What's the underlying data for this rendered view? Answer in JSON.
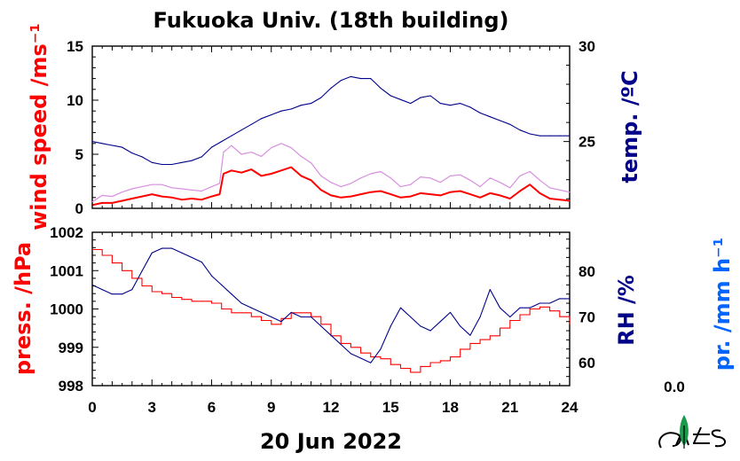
{
  "title": "Fukuoka Univ. (18th building)",
  "date_label": "20 Jun 2022",
  "precip_value": "0.0",
  "colors": {
    "red": "#ff0000",
    "navy": "#00008b",
    "blue": "#0066ff",
    "pink": "#d88ee0",
    "logo_green": "#1a9a4a"
  },
  "chart_data": [
    {
      "type": "line",
      "panel": "top",
      "xlabel": "",
      "x_range": [
        0,
        24
      ],
      "x_ticks": [
        "0",
        "3",
        "6",
        "9",
        "12",
        "15",
        "18",
        "21",
        "24"
      ],
      "left_axis": {
        "label": "wind speed /ms⁻¹",
        "ylim": [
          0,
          15
        ],
        "ticks": [
          "0",
          "5",
          "10",
          "15"
        ],
        "color": "#ff0000"
      },
      "right_axis": {
        "label": "temp. /ºC",
        "ylim": [
          21.5,
          30
        ],
        "ticks": [
          "25",
          "30"
        ],
        "color": "#00008b"
      },
      "series": [
        {
          "axis": "left",
          "color": "#ff0000",
          "style": "mean",
          "x": [
            0,
            0.5,
            1,
            1.5,
            2,
            2.5,
            3,
            3.5,
            4,
            4.5,
            5,
            5.5,
            6,
            6.4,
            6.6,
            7,
            7.5,
            8,
            8.5,
            9,
            9.5,
            10,
            10.5,
            11,
            11.5,
            12,
            12.5,
            13,
            13.5,
            14,
            14.5,
            15,
            15.5,
            16,
            16.5,
            17,
            17.5,
            18,
            18.5,
            19,
            19.5,
            20,
            20.5,
            21,
            21.5,
            22,
            22.5,
            23,
            23.5,
            24
          ],
          "values": [
            0.3,
            0.5,
            0.5,
            0.7,
            0.9,
            1.1,
            1.3,
            1.1,
            1.0,
            0.8,
            0.9,
            0.8,
            1.1,
            1.3,
            3.2,
            3.5,
            3.3,
            3.6,
            3.0,
            3.2,
            3.5,
            3.8,
            3.0,
            2.6,
            1.7,
            1.2,
            1.0,
            1.1,
            1.3,
            1.5,
            1.6,
            1.3,
            1.0,
            1.1,
            1.4,
            1.3,
            1.2,
            1.5,
            1.6,
            1.3,
            1.0,
            1.4,
            1.2,
            0.9,
            1.6,
            2.2,
            1.4,
            0.9,
            0.8,
            0.7
          ]
        },
        {
          "axis": "left",
          "color": "#d88ee0",
          "style": "gust-band",
          "x": [
            0,
            0.5,
            1,
            1.5,
            2,
            2.5,
            3,
            3.5,
            4,
            4.5,
            5,
            5.5,
            6,
            6.4,
            6.6,
            7,
            7.5,
            8,
            8.5,
            9,
            9.5,
            10,
            10.5,
            11,
            11.5,
            12,
            12.5,
            13,
            13.5,
            14,
            14.5,
            15,
            15.5,
            16,
            16.5,
            17,
            17.5,
            18,
            18.5,
            19,
            19.5,
            20,
            20.5,
            21,
            21.5,
            22,
            22.5,
            23,
            23.5,
            24
          ],
          "values": [
            0.6,
            1.2,
            1.1,
            1.5,
            1.8,
            2.0,
            2.2,
            2.2,
            1.9,
            1.8,
            1.7,
            1.6,
            2.0,
            2.3,
            5.2,
            5.8,
            5.0,
            5.2,
            4.8,
            5.6,
            6.0,
            5.6,
            4.8,
            4.2,
            3.0,
            2.4,
            2.0,
            2.3,
            2.8,
            3.2,
            3.4,
            2.8,
            2.0,
            2.2,
            2.9,
            2.8,
            2.4,
            3.0,
            3.1,
            2.6,
            2.0,
            2.8,
            2.4,
            1.9,
            3.0,
            3.4,
            2.6,
            1.9,
            1.7,
            1.5
          ]
        },
        {
          "axis": "right",
          "color": "#00008b",
          "style": "line",
          "x": [
            0,
            0.5,
            1,
            1.5,
            2,
            2.5,
            3,
            3.5,
            4,
            4.5,
            5,
            5.5,
            6,
            6.5,
            7,
            7.5,
            8,
            8.5,
            9,
            9.5,
            10,
            10.5,
            11,
            11.5,
            12,
            12.5,
            13,
            13.5,
            14,
            14.5,
            15,
            15.5,
            16,
            16.5,
            17,
            17.5,
            18,
            18.5,
            19,
            19.5,
            20,
            20.5,
            21,
            21.5,
            22,
            22.5,
            23,
            23.5,
            24
          ],
          "values": [
            25.0,
            24.9,
            24.8,
            24.7,
            24.4,
            24.2,
            23.9,
            23.8,
            23.8,
            23.9,
            24.0,
            24.2,
            24.7,
            25.0,
            25.3,
            25.6,
            25.9,
            26.2,
            26.4,
            26.6,
            26.7,
            26.9,
            27.0,
            27.3,
            27.8,
            28.2,
            28.4,
            28.3,
            28.3,
            27.8,
            27.4,
            27.2,
            27.0,
            27.3,
            27.4,
            27.0,
            26.9,
            27.0,
            26.8,
            26.5,
            26.3,
            26.1,
            25.9,
            25.6,
            25.4,
            25.3,
            25.3,
            25.3,
            25.3
          ]
        }
      ]
    },
    {
      "type": "line",
      "panel": "bottom",
      "xlabel": "",
      "x_range": [
        0,
        24
      ],
      "x_ticks": [
        "0",
        "3",
        "6",
        "9",
        "12",
        "15",
        "18",
        "21",
        "24"
      ],
      "left_axis": {
        "label": "press. /hPa",
        "ylim": [
          998,
          1002
        ],
        "ticks": [
          "998",
          "999",
          "1000",
          "1001",
          "1002"
        ],
        "color": "#ff0000"
      },
      "right_axis": {
        "label": "RH /%",
        "ylim": [
          55,
          88.5
        ],
        "ticks": [
          "60",
          "70",
          "80"
        ],
        "color": "#00008b"
      },
      "extra_axis": {
        "label": "pr. /mm h⁻¹",
        "color": "#0066ff"
      },
      "series": [
        {
          "axis": "left",
          "color": "#ff0000",
          "style": "step",
          "x": [
            0,
            0.5,
            1,
            1.5,
            2,
            2.5,
            3,
            3.5,
            4,
            4.5,
            5,
            5.5,
            6,
            6.5,
            7,
            7.5,
            8,
            8.5,
            9,
            9.5,
            10,
            10.5,
            11,
            11.5,
            12,
            12.5,
            13,
            13.5,
            14,
            14.5,
            15,
            15.5,
            16,
            16.5,
            17,
            17.5,
            18,
            18.5,
            19,
            19.5,
            20,
            20.5,
            21,
            21.5,
            22,
            22.5,
            23,
            23.5,
            24
          ],
          "values": [
            1001.55,
            1001.4,
            1001.2,
            1001.0,
            1000.8,
            1000.6,
            1000.45,
            1000.4,
            1000.3,
            1000.25,
            1000.2,
            1000.2,
            1000.15,
            1000.0,
            999.9,
            999.9,
            999.8,
            999.7,
            999.6,
            999.75,
            999.9,
            999.9,
            999.8,
            999.6,
            999.3,
            999.1,
            999.0,
            998.85,
            998.75,
            998.7,
            998.55,
            998.45,
            998.35,
            998.5,
            998.6,
            998.65,
            998.75,
            998.95,
            999.1,
            999.2,
            999.3,
            999.5,
            999.7,
            999.85,
            1000.0,
            1000.05,
            999.95,
            999.8,
            999.6
          ]
        },
        {
          "axis": "right",
          "color": "#00008b",
          "style": "line",
          "x": [
            0,
            0.5,
            1,
            1.5,
            2,
            2.5,
            3,
            3.5,
            4,
            4.5,
            5,
            5.5,
            6,
            6.5,
            7,
            7.5,
            8,
            8.5,
            9,
            9.5,
            10,
            10.5,
            11,
            11.5,
            12,
            12.5,
            13,
            13.5,
            14,
            14.5,
            15,
            15.5,
            16,
            16.5,
            17,
            17.5,
            18,
            18.5,
            19,
            19.5,
            20,
            20.5,
            21,
            21.5,
            22,
            22.5,
            23,
            23.5,
            24
          ],
          "values": [
            77,
            76,
            75,
            75,
            76,
            80,
            84,
            85,
            85,
            84,
            83,
            82,
            79,
            77,
            75,
            73,
            72,
            71,
            70,
            69,
            71,
            70,
            70,
            68,
            66,
            64,
            62,
            61,
            60,
            63,
            68,
            72,
            70,
            68,
            67,
            69,
            71,
            68,
            66,
            70,
            76,
            72,
            70,
            72,
            72,
            73,
            73,
            74,
            74
          ]
        }
      ]
    }
  ]
}
